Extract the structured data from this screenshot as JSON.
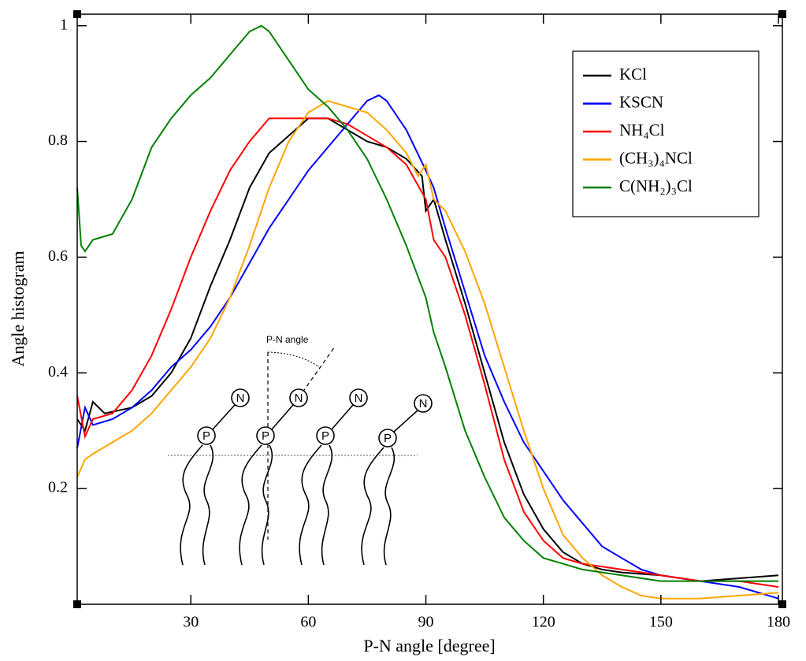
{
  "chart_data": {
    "type": "line",
    "xlabel": "P-N angle [degree]",
    "ylabel": "Angle histogram",
    "xlim": [
      1,
      181
    ],
    "ylim": [
      0,
      1.02
    ],
    "xticks": [
      30,
      60,
      90,
      120,
      150,
      180
    ],
    "yticks": [
      0.2,
      0.4,
      0.6,
      0.8,
      1
    ],
    "legend": "upper right",
    "series": [
      {
        "name": "KCl",
        "color": "#000000",
        "x": [
          1,
          3,
          5,
          8,
          15,
          20,
          25,
          30,
          35,
          40,
          45,
          50,
          55,
          60,
          65,
          70,
          75,
          80,
          85,
          89,
          90,
          92,
          95,
          100,
          105,
          110,
          115,
          120,
          125,
          130,
          135,
          140,
          150,
          160,
          170,
          180
        ],
        "values": [
          0.32,
          0.3,
          0.35,
          0.33,
          0.34,
          0.36,
          0.4,
          0.46,
          0.55,
          0.63,
          0.72,
          0.78,
          0.81,
          0.84,
          0.84,
          0.82,
          0.8,
          0.79,
          0.77,
          0.74,
          0.68,
          0.7,
          0.63,
          0.52,
          0.4,
          0.28,
          0.19,
          0.13,
          0.09,
          0.07,
          0.06,
          0.055,
          0.05,
          0.04,
          0.045,
          0.05
        ]
      },
      {
        "name": "KSCN",
        "color": "#0000ff",
        "x": [
          1,
          3,
          5,
          10,
          15,
          20,
          25,
          30,
          35,
          40,
          45,
          50,
          55,
          60,
          65,
          70,
          75,
          78,
          80,
          85,
          90,
          92,
          95,
          100,
          105,
          110,
          115,
          120,
          125,
          130,
          135,
          140,
          145,
          150,
          160,
          170,
          180
        ],
        "values": [
          0.27,
          0.34,
          0.31,
          0.32,
          0.34,
          0.37,
          0.41,
          0.44,
          0.48,
          0.53,
          0.59,
          0.65,
          0.7,
          0.75,
          0.79,
          0.83,
          0.87,
          0.88,
          0.87,
          0.82,
          0.75,
          0.72,
          0.65,
          0.54,
          0.43,
          0.35,
          0.28,
          0.23,
          0.18,
          0.14,
          0.1,
          0.08,
          0.06,
          0.05,
          0.04,
          0.03,
          0.01
        ]
      },
      {
        "name": "NH₄Cl",
        "color": "#ff0000",
        "x": [
          1,
          3,
          5,
          10,
          15,
          20,
          25,
          30,
          35,
          40,
          45,
          50,
          55,
          60,
          65,
          70,
          75,
          80,
          85,
          90,
          92,
          95,
          100,
          105,
          110,
          115,
          120,
          125,
          130,
          140,
          150,
          160,
          170,
          180
        ],
        "values": [
          0.36,
          0.29,
          0.32,
          0.33,
          0.37,
          0.43,
          0.51,
          0.6,
          0.68,
          0.75,
          0.8,
          0.84,
          0.84,
          0.84,
          0.84,
          0.83,
          0.81,
          0.79,
          0.76,
          0.7,
          0.63,
          0.6,
          0.5,
          0.38,
          0.25,
          0.16,
          0.11,
          0.08,
          0.07,
          0.06,
          0.05,
          0.04,
          0.04,
          0.03
        ]
      },
      {
        "name": "(CH₃)₄NCl",
        "color": "#ffa500",
        "x": [
          1,
          3,
          5,
          10,
          15,
          20,
          25,
          30,
          35,
          40,
          45,
          50,
          55,
          60,
          65,
          70,
          75,
          80,
          85,
          88,
          90,
          92,
          95,
          100,
          105,
          110,
          115,
          120,
          125,
          130,
          135,
          140,
          145,
          150,
          160,
          170,
          180
        ],
        "values": [
          0.22,
          0.25,
          0.26,
          0.28,
          0.3,
          0.33,
          0.37,
          0.41,
          0.46,
          0.53,
          0.62,
          0.72,
          0.8,
          0.85,
          0.87,
          0.86,
          0.85,
          0.82,
          0.78,
          0.74,
          0.76,
          0.7,
          0.68,
          0.61,
          0.52,
          0.41,
          0.3,
          0.2,
          0.12,
          0.08,
          0.05,
          0.03,
          0.015,
          0.01,
          0.01,
          0.015,
          0.02
        ]
      },
      {
        "name": "C(NH₂)₃Cl",
        "color": "#008000",
        "x": [
          1,
          2,
          3,
          5,
          10,
          15,
          20,
          25,
          30,
          35,
          40,
          45,
          48,
          50,
          55,
          60,
          65,
          70,
          75,
          80,
          85,
          90,
          92,
          95,
          100,
          105,
          110,
          115,
          120,
          125,
          130,
          140,
          150,
          160,
          170,
          180
        ],
        "values": [
          0.72,
          0.62,
          0.61,
          0.63,
          0.64,
          0.7,
          0.79,
          0.84,
          0.88,
          0.91,
          0.95,
          0.99,
          1.0,
          0.99,
          0.94,
          0.89,
          0.86,
          0.82,
          0.77,
          0.7,
          0.62,
          0.53,
          0.47,
          0.41,
          0.3,
          0.22,
          0.15,
          0.11,
          0.08,
          0.07,
          0.06,
          0.05,
          0.04,
          0.04,
          0.04,
          0.04
        ]
      }
    ]
  },
  "inset": {
    "angle_label": "P-N angle",
    "phosphorus": "P",
    "nitrogen": "N"
  }
}
